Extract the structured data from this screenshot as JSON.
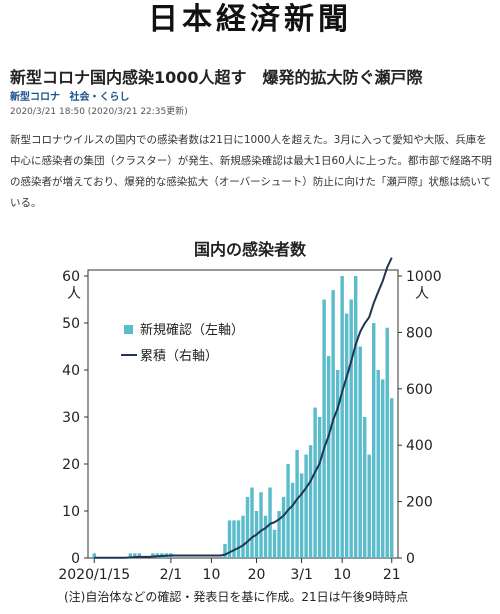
{
  "masthead": "日本経済新聞",
  "article": {
    "headline": "新型コロナ国内感染1000人超す　爆発的拡大防ぐ瀬戸際",
    "tags": [
      "新型コロナ",
      "社会・くらし"
    ],
    "timestamp": "2020/3/21 18:50 (2020/3/21 22:35更新)",
    "body": "新型コロナウイルスの国内での感染者数は21日に1000人を超えた。3月に入って愛知や大阪、兵庫を中心に感染者の集団（クラスター）が発生、新規感染確認は最大1日60人に上った。都市部で経路不明の感染者が増えており、爆発的な感染拡大（オーバーシュート）防止に向けた「瀬戸際」状態は続いている。"
  },
  "chart_data": {
    "type": "bar",
    "title": "国内の感染者数",
    "note": "(注)自治体などの確認・発表日を基に作成。21日は午後9時時点",
    "x": [
      "2020/1/15",
      "1/16",
      "1/17",
      "1/18",
      "1/19",
      "1/20",
      "1/21",
      "1/22",
      "1/23",
      "1/24",
      "1/25",
      "1/26",
      "1/27",
      "1/28",
      "1/29",
      "1/30",
      "1/31",
      "2/1",
      "2/2",
      "2/3",
      "2/4",
      "2/5",
      "2/6",
      "2/7",
      "2/8",
      "2/9",
      "2/10",
      "2/11",
      "2/12",
      "2/13",
      "2/14",
      "2/15",
      "2/16",
      "2/17",
      "2/18",
      "2/19",
      "2/20",
      "2/21",
      "2/22",
      "2/23",
      "2/24",
      "2/25",
      "2/26",
      "2/27",
      "2/28",
      "2/29",
      "3/1",
      "3/2",
      "3/3",
      "3/4",
      "3/5",
      "3/6",
      "3/7",
      "3/8",
      "3/9",
      "3/10",
      "3/11",
      "3/12",
      "3/13",
      "3/14",
      "3/15",
      "3/16",
      "3/17",
      "3/18",
      "3/19",
      "3/20",
      "3/21"
    ],
    "x_ticks": [
      "2020/1/15",
      "2/1",
      "10",
      "20",
      "3/1",
      "10",
      "21"
    ],
    "x_tick_index": [
      0,
      17,
      26,
      36,
      46,
      55,
      66
    ],
    "series": [
      {
        "name": "新規確認（左軸）",
        "axis": "left",
        "color": "#5bbccb",
        "values": [
          1,
          0,
          0,
          0,
          0,
          0,
          0,
          0,
          1,
          1,
          1,
          0,
          0,
          1,
          1,
          1,
          1,
          1,
          0,
          0,
          0,
          0,
          0,
          0,
          0,
          0,
          0,
          0,
          0,
          3,
          8,
          8,
          8,
          9,
          13,
          15,
          10,
          14,
          9,
          15,
          6,
          10,
          13,
          20,
          16,
          23,
          18,
          22,
          24,
          32,
          30,
          55,
          43,
          57,
          40,
          60,
          52,
          55,
          60,
          45,
          30,
          22,
          50,
          40,
          38,
          49,
          34
        ]
      },
      {
        "name": "累積（右軸）",
        "axis": "right",
        "color": "#1f3552",
        "values": [
          1,
          1,
          1,
          1,
          1,
          1,
          1,
          1,
          2,
          3,
          4,
          4,
          4,
          5,
          6,
          7,
          8,
          9,
          9,
          9,
          9,
          9,
          9,
          9,
          9,
          9,
          9,
          9,
          9,
          12,
          20,
          28,
          36,
          45,
          58,
          73,
          83,
          97,
          106,
          121,
          127,
          137,
          150,
          170,
          186,
          209,
          227,
          249,
          273,
          305,
          335,
          390,
          433,
          490,
          530,
          590,
          642,
          697,
          757,
          802,
          832,
          854,
          904,
          944,
          982,
          1031,
          1065
        ]
      }
    ],
    "y_left": {
      "ticks": [
        0,
        10,
        20,
        30,
        40,
        50,
        60
      ],
      "unit": "人",
      "ylim": [
        0,
        60
      ]
    },
    "y_right": {
      "ticks": [
        0,
        200,
        400,
        600,
        800,
        1000
      ],
      "unit": "人",
      "ylim": [
        0,
        1000
      ]
    },
    "legend_position": "upper-left"
  }
}
